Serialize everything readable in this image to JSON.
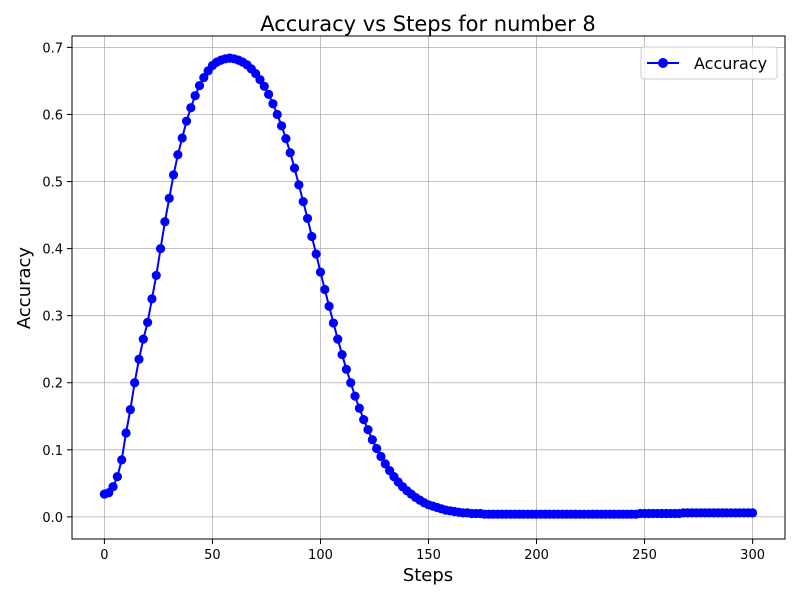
{
  "chart_data": {
    "type": "line",
    "title": "Accuracy vs Steps for number 8",
    "xlabel": "Steps",
    "ylabel": "Accuracy",
    "xlim": [
      -15,
      315
    ],
    "ylim": [
      -0.033,
      0.717
    ],
    "xticks": [
      0,
      50,
      100,
      150,
      200,
      250,
      300
    ],
    "xtick_labels": [
      "0",
      "50",
      "100",
      "150",
      "200",
      "250",
      "300"
    ],
    "yticks": [
      0.0,
      0.1,
      0.2,
      0.3,
      0.4,
      0.5,
      0.6,
      0.7
    ],
    "ytick_labels": [
      "0.0",
      "0.1",
      "0.2",
      "0.3",
      "0.4",
      "0.5",
      "0.6",
      "0.7"
    ],
    "grid": true,
    "legend_position": "top-right",
    "series": [
      {
        "name": "Accuracy",
        "color": "#0000ff",
        "marker": "circle",
        "x": [
          0,
          2,
          4,
          6,
          8,
          10,
          12,
          14,
          16,
          18,
          20,
          22,
          24,
          26,
          28,
          30,
          32,
          34,
          36,
          38,
          40,
          42,
          44,
          46,
          48,
          50,
          52,
          54,
          56,
          58,
          60,
          62,
          64,
          66,
          68,
          70,
          72,
          74,
          76,
          78,
          80,
          82,
          84,
          86,
          88,
          90,
          92,
          94,
          96,
          98,
          100,
          102,
          104,
          106,
          108,
          110,
          112,
          114,
          116,
          118,
          120,
          122,
          124,
          126,
          128,
          130,
          132,
          134,
          136,
          138,
          140,
          142,
          144,
          146,
          148,
          150,
          152,
          154,
          156,
          158,
          160,
          162,
          164,
          166,
          168,
          170,
          172,
          174,
          176,
          178,
          180,
          182,
          184,
          186,
          188,
          190,
          192,
          194,
          196,
          198,
          200,
          202,
          204,
          206,
          208,
          210,
          212,
          214,
          216,
          218,
          220,
          222,
          224,
          226,
          228,
          230,
          232,
          234,
          236,
          238,
          240,
          242,
          244,
          246,
          248,
          250,
          252,
          254,
          256,
          258,
          260,
          262,
          264,
          266,
          268,
          270,
          272,
          274,
          276,
          278,
          280,
          282,
          284,
          286,
          288,
          290,
          292,
          294,
          296,
          298,
          300
        ],
        "values": [
          0.034,
          0.036,
          0.045,
          0.06,
          0.085,
          0.125,
          0.16,
          0.2,
          0.235,
          0.265,
          0.29,
          0.325,
          0.36,
          0.4,
          0.44,
          0.475,
          0.51,
          0.54,
          0.565,
          0.59,
          0.61,
          0.628,
          0.643,
          0.655,
          0.665,
          0.673,
          0.678,
          0.681,
          0.683,
          0.684,
          0.683,
          0.681,
          0.678,
          0.674,
          0.668,
          0.661,
          0.652,
          0.642,
          0.63,
          0.616,
          0.6,
          0.583,
          0.564,
          0.543,
          0.52,
          0.495,
          0.47,
          0.445,
          0.418,
          0.392,
          0.365,
          0.339,
          0.314,
          0.289,
          0.265,
          0.242,
          0.22,
          0.2,
          0.18,
          0.162,
          0.145,
          0.13,
          0.115,
          0.102,
          0.09,
          0.079,
          0.069,
          0.06,
          0.052,
          0.045,
          0.039,
          0.034,
          0.029,
          0.025,
          0.021,
          0.018,
          0.016,
          0.014,
          0.012,
          0.01,
          0.009,
          0.008,
          0.007,
          0.006,
          0.006,
          0.005,
          0.005,
          0.005,
          0.004,
          0.004,
          0.004,
          0.004,
          0.004,
          0.004,
          0.004,
          0.004,
          0.004,
          0.004,
          0.004,
          0.004,
          0.004,
          0.004,
          0.004,
          0.004,
          0.004,
          0.004,
          0.004,
          0.004,
          0.004,
          0.004,
          0.004,
          0.004,
          0.004,
          0.004,
          0.004,
          0.004,
          0.004,
          0.004,
          0.004,
          0.004,
          0.004,
          0.004,
          0.004,
          0.004,
          0.005,
          0.005,
          0.005,
          0.005,
          0.005,
          0.005,
          0.005,
          0.005,
          0.005,
          0.005,
          0.006,
          0.006,
          0.006,
          0.006,
          0.006,
          0.006,
          0.006,
          0.006,
          0.006,
          0.006,
          0.006,
          0.006,
          0.006,
          0.006,
          0.006,
          0.006,
          0.006
        ]
      }
    ]
  }
}
